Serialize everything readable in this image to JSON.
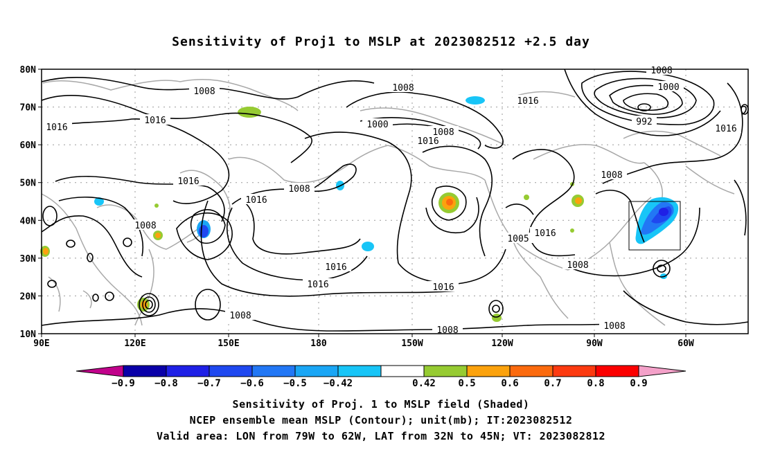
{
  "title": "Sensitivity of Proj1 to MSLP at 2023082512 +2.5 day",
  "lat_labels": [
    "80N",
    "70N",
    "60N",
    "50N",
    "40N",
    "30N",
    "20N",
    "10N"
  ],
  "lon_labels": [
    "90E",
    "120E",
    "150E",
    "180",
    "150W",
    "120W",
    "90W",
    "60W"
  ],
  "contour_labels": [
    "1008",
    "1016",
    "1008",
    "1016",
    "1008",
    "1000",
    "1008",
    "1016",
    "1016",
    "1008",
    "1008",
    "1016",
    "1016",
    "1016",
    "1016",
    "1016",
    "1005",
    "1016",
    "1008",
    "1008",
    "1008",
    "1008",
    "1008",
    "1000",
    "992",
    "1016"
  ],
  "colorbar": {
    "tick_labels": [
      "-0.9",
      "-0.8",
      "-0.7",
      "-0.6",
      "-0.5",
      "-0.42",
      "0.42",
      "0.5",
      "0.6",
      "0.7",
      "0.8",
      "0.9"
    ],
    "colors": [
      "#0a00a8",
      "#1f20e6",
      "#1f48f0",
      "#2277f5",
      "#1aa6f5",
      "#18c5f7",
      "#ffffff",
      "#96cb32",
      "#fba20d",
      "#fb6a0e",
      "#fc3a10",
      "#fb0000"
    ],
    "left_arrow_color": "#c1028b",
    "right_arrow_color": "#f4a1c9"
  },
  "footer": {
    "line1": "Sensitivity of Proj. 1 to MSLP field (Shaded)",
    "line2": "NCEP ensemble mean MSLP (Contour); unit(mb); IT:2023082512",
    "line3": "Valid area: LON from 79W to 62W, LAT from 32N to 45N; VT: 2023082812"
  },
  "valid_area": {
    "lon_min": -79,
    "lon_max": -62,
    "lat_min": 32,
    "lat_max": 45
  }
}
